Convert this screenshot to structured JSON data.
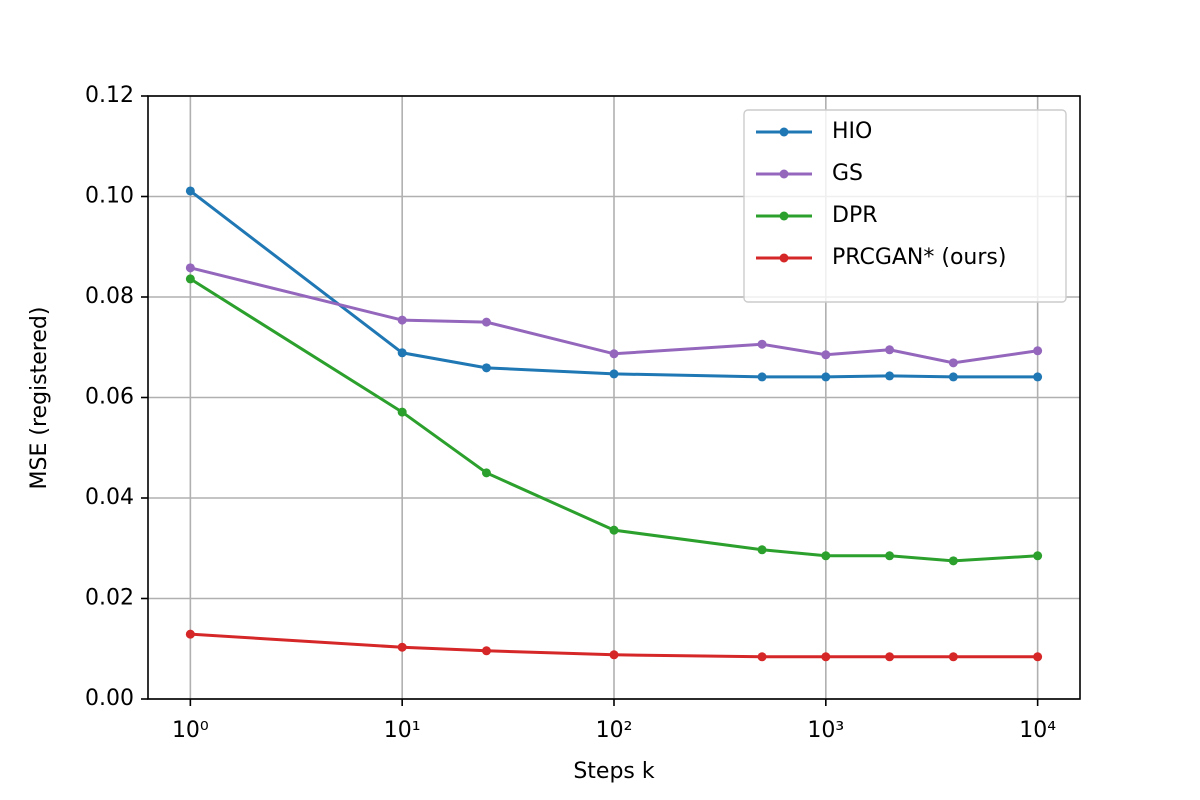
{
  "chart_data": {
    "type": "line",
    "xlabel": "Steps k",
    "ylabel": "MSE (registered)",
    "xscale": "log",
    "grid": true,
    "legend": "upper right",
    "x": [
      1,
      10,
      25,
      100,
      500,
      1000,
      2000,
      4000,
      10000
    ],
    "xlim": [
      0.631,
      15849
    ],
    "xticks": [
      {
        "value": 1,
        "label": "10⁰"
      },
      {
        "value": 10,
        "label": "10¹"
      },
      {
        "value": 100,
        "label": "10²"
      },
      {
        "value": 1000,
        "label": "10³"
      },
      {
        "value": 10000,
        "label": "10⁴"
      }
    ],
    "ylim": [
      0,
      0.12
    ],
    "yticks": [
      {
        "value": 0,
        "label": "0.00"
      },
      {
        "value": 0.02,
        "label": "0.02"
      },
      {
        "value": 0.04,
        "label": "0.04"
      },
      {
        "value": 0.06,
        "label": "0.06"
      },
      {
        "value": 0.08,
        "label": "0.08"
      },
      {
        "value": 0.1,
        "label": "0.10"
      },
      {
        "value": 0.12,
        "label": "0.12"
      }
    ],
    "series": [
      {
        "name": "HIO",
        "color": "#1f77b4",
        "values": [
          0.1011,
          0.0689,
          0.0659,
          0.0647,
          0.0641,
          0.0641,
          0.0643,
          0.0641,
          0.0641
        ]
      },
      {
        "name": "GS",
        "color": "#9467bd",
        "values": [
          0.0858,
          0.0754,
          0.075,
          0.0687,
          0.0706,
          0.0685,
          0.0695,
          0.0669,
          0.0693
        ]
      },
      {
        "name": "DPR",
        "color": "#2ca02c",
        "values": [
          0.0836,
          0.0571,
          0.045,
          0.0336,
          0.0297,
          0.0285,
          0.0285,
          0.0275,
          0.0285
        ]
      },
      {
        "name": "PRCGAN* (ours)",
        "color": "#d62728",
        "values": [
          0.0129,
          0.0103,
          0.0096,
          0.0088,
          0.0084,
          0.0084,
          0.0084,
          0.0084,
          0.0084
        ]
      }
    ]
  }
}
